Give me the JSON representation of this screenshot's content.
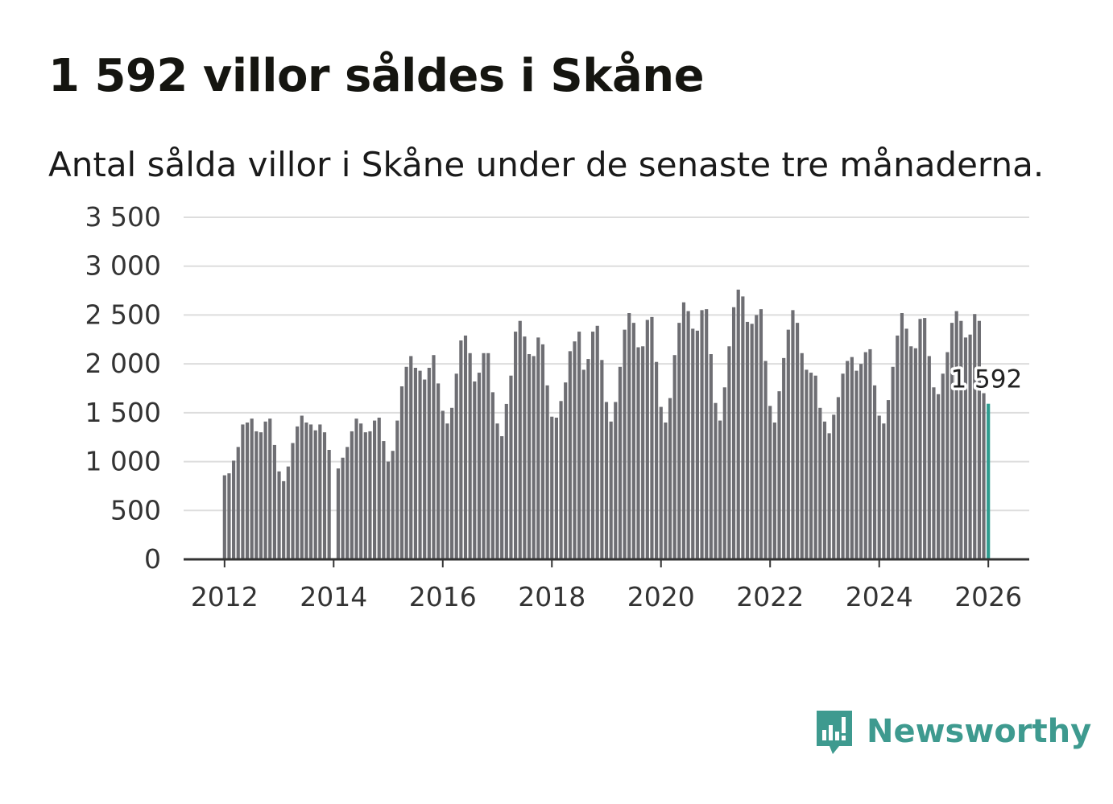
{
  "title": "1 592 villor såldes i Skåne",
  "subtitle": "Antal sålda villor i Skåne under de senaste tre månaderna.",
  "brand": {
    "name": "Newsworthy",
    "icon": "newsworthy-logo-icon"
  },
  "colors": {
    "bar": "#6e6e73",
    "highlight": "#2e9c8f",
    "grid": "#dddddd",
    "axis": "#333333",
    "brand": "#3e9a8f"
  },
  "chart_data": {
    "type": "bar",
    "title": "1 592 villor såldes i Skåne",
    "subtitle": "Antal sålda villor i Skåne under de senaste tre månaderna.",
    "xlabel": "",
    "ylabel": "",
    "ylim": [
      0,
      3500
    ],
    "y_ticks": [
      0,
      500,
      1000,
      1500,
      2000,
      2500,
      3000,
      3500
    ],
    "y_tick_labels": [
      "0",
      "500",
      "1 000",
      "1 500",
      "2 000",
      "2 500",
      "3 000",
      "3 500"
    ],
    "x_ticks": [
      2012,
      2014,
      2016,
      2018,
      2020,
      2022,
      2024,
      2026
    ],
    "x_tick_labels": [
      "2012",
      "2014",
      "2016",
      "2018",
      "2020",
      "2022",
      "2024",
      "2026"
    ],
    "x_range": [
      2011.25,
      2026.75
    ],
    "grid": true,
    "start": 2012.0,
    "step": 0.08333333,
    "values": [
      860,
      880,
      1010,
      1150,
      1380,
      1400,
      1440,
      1310,
      1300,
      1410,
      1440,
      1170,
      900,
      800,
      950,
      1190,
      1360,
      1470,
      1400,
      1380,
      1320,
      1380,
      1300,
      1120,
      0,
      930,
      1040,
      1150,
      1310,
      1440,
      1390,
      1300,
      1310,
      1420,
      1450,
      1210,
      1000,
      1110,
      1420,
      1770,
      1970,
      2080,
      1960,
      1930,
      1840,
      1960,
      2090,
      1800,
      1520,
      1390,
      1550,
      1900,
      2240,
      2290,
      2110,
      1820,
      1910,
      2110,
      2110,
      1710,
      1390,
      1260,
      1590,
      1880,
      2330,
      2440,
      2280,
      2100,
      2080,
      2270,
      2200,
      1780,
      1460,
      1450,
      1620,
      1810,
      2130,
      2230,
      2330,
      1940,
      2050,
      2330,
      2390,
      2040,
      1610,
      1410,
      1610,
      1970,
      2350,
      2520,
      2420,
      2170,
      2180,
      2450,
      2480,
      2020,
      1560,
      1400,
      1650,
      2090,
      2420,
      2630,
      2540,
      2360,
      2340,
      2550,
      2560,
      2100,
      1600,
      1420,
      1760,
      2180,
      2580,
      2760,
      2690,
      2430,
      2410,
      2500,
      2560,
      2030,
      1570,
      1400,
      1720,
      2060,
      2350,
      2550,
      2420,
      2110,
      1940,
      1910,
      1880,
      1550,
      1410,
      1290,
      1480,
      1660,
      1900,
      2030,
      2070,
      1930,
      2000,
      2120,
      2150,
      1780,
      1470,
      1390,
      1630,
      1970,
      2290,
      2520,
      2360,
      2180,
      2160,
      2460,
      2470,
      2080,
      1760,
      1690,
      1900,
      2120,
      2420,
      2540,
      2440,
      2270,
      2300,
      2510,
      2440,
      1700,
      1592
    ],
    "highlight_index": 168,
    "annotation": {
      "label": "1 592",
      "value": 1592
    }
  }
}
